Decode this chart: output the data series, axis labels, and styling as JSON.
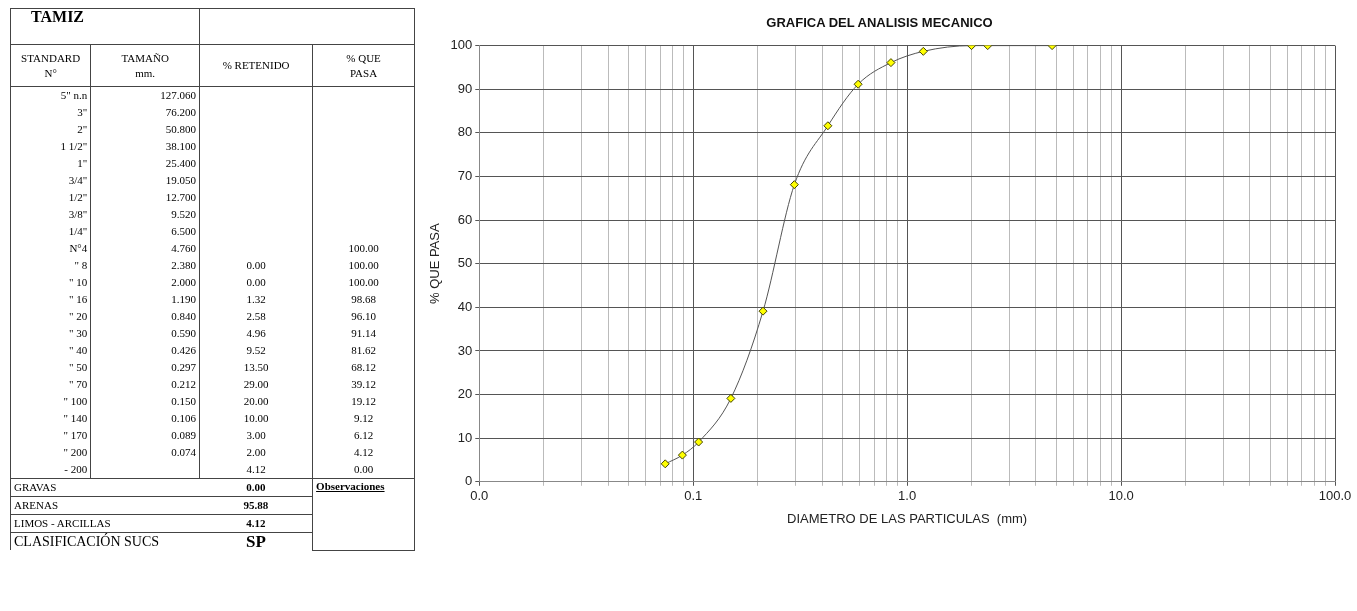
{
  "chart_data": [
    {
      "type": "other",
      "title": "TAMIZ",
      "xlabel": "STANDARD N°",
      "categories": [
        "5\" n.n",
        "3\"",
        "2\"",
        "1 1/2\"",
        "1\"",
        "3/4\"",
        "1/2\"",
        "3/8\"",
        "1/4\"",
        "N°4",
        "\" 8",
        "\" 10",
        "\" 16",
        "\" 20",
        "\" 30",
        "\" 40",
        "\" 50",
        "\" 70",
        "\" 100",
        "\" 140",
        "\" 170",
        "\" 200",
        "- 200"
      ],
      "series": [
        {
          "name": "TAMAÑO mm.",
          "values": [
            127.06,
            76.2,
            50.8,
            38.1,
            25.4,
            19.05,
            12.7,
            9.52,
            6.5,
            4.76,
            2.38,
            2.0,
            1.19,
            0.84,
            0.59,
            0.426,
            0.297,
            0.212,
            0.15,
            0.106,
            0.089,
            0.074,
            null
          ],
          "value_labels": [
            "127.060",
            "76.200",
            "50.800",
            "38.100",
            "25.400",
            "19.050",
            "12.700",
            "9.520",
            "6.500",
            "4.760",
            "2.380",
            "2.000",
            "1.190",
            "0.840",
            "0.590",
            "0.426",
            "0.297",
            "0.212",
            "0.150",
            "0.106",
            "0.089",
            "0.074",
            null
          ]
        },
        {
          "name": "% RETENIDO",
          "values": [
            null,
            null,
            null,
            null,
            null,
            null,
            null,
            null,
            null,
            null,
            0,
            0,
            1.32,
            2.58,
            4.96,
            9.52,
            13.5,
            29,
            20,
            10,
            3,
            2,
            4.12
          ],
          "value_labels": [
            null,
            null,
            null,
            null,
            null,
            null,
            null,
            null,
            null,
            null,
            "0.00",
            "0.00",
            "1.32",
            "2.58",
            "4.96",
            "9.52",
            "13.50",
            "29.00",
            "20.00",
            "10.00",
            "3.00",
            "2.00",
            "4.12"
          ]
        },
        {
          "name": "% QUE PASA",
          "values": [
            null,
            null,
            null,
            null,
            null,
            null,
            null,
            null,
            null,
            100,
            100,
            100,
            98.68,
            96.1,
            91.14,
            81.62,
            68.12,
            39.12,
            19.12,
            9.12,
            6.12,
            4.12,
            0
          ],
          "value_labels": [
            null,
            null,
            null,
            null,
            null,
            null,
            null,
            null,
            null,
            "100.00",
            "100.00",
            "100.00",
            "98.68",
            "96.10",
            "91.14",
            "81.62",
            "68.12",
            "39.12",
            "19.12",
            "9.12",
            "6.12",
            "4.12",
            "0.00"
          ]
        }
      ],
      "annotations": [
        "GRAVAS",
        "0.00",
        "ARENAS",
        "95.88",
        "LIMOS - ARCILLAS",
        "4.12",
        "CLASIFICACIÓN SUCS",
        "SP",
        "Observaciones"
      ]
    },
    {
      "type": "line",
      "title": "GRAFICA DEL ANALISIS MECANICO",
      "xlabel": "DIAMETRO DE LAS PARTICULAS  (mm)",
      "ylabel": "% QUE PASA",
      "log": "x",
      "grid": true,
      "marker": "diamond",
      "line_style": "solid",
      "xlim": [
        0.01,
        100
      ],
      "xticks": [
        {
          "value": 0.01,
          "label": "0.0"
        },
        {
          "value": 0.02,
          "label": null
        },
        {
          "value": 0.03,
          "label": null
        },
        {
          "value": 0.04,
          "label": null
        },
        {
          "value": 0.05,
          "label": null
        },
        {
          "value": 0.06,
          "label": null
        },
        {
          "value": 0.07,
          "label": null
        },
        {
          "value": 0.08,
          "label": null
        },
        {
          "value": 0.09,
          "label": null
        },
        {
          "value": 0.1,
          "label": "0.1"
        },
        {
          "value": 0.2,
          "label": null
        },
        {
          "value": 0.3,
          "label": null
        },
        {
          "value": 0.4,
          "label": null
        },
        {
          "value": 0.5,
          "label": null
        },
        {
          "value": 0.6,
          "label": null
        },
        {
          "value": 0.7,
          "label": null
        },
        {
          "value": 0.8,
          "label": null
        },
        {
          "value": 0.9,
          "label": null
        },
        {
          "value": 1,
          "label": "1.0"
        },
        {
          "value": 2,
          "label": null
        },
        {
          "value": 3,
          "label": null
        },
        {
          "value": 4,
          "label": null
        },
        {
          "value": 5,
          "label": null
        },
        {
          "value": 6,
          "label": null
        },
        {
          "value": 7,
          "label": null
        },
        {
          "value": 8,
          "label": null
        },
        {
          "value": 9,
          "label": null
        },
        {
          "value": 10,
          "label": "10.0"
        },
        {
          "value": 20,
          "label": null
        },
        {
          "value": 30,
          "label": null
        },
        {
          "value": 40,
          "label": null
        },
        {
          "value": 50,
          "label": null
        },
        {
          "value": 60,
          "label": null
        },
        {
          "value": 70,
          "label": null
        },
        {
          "value": 80,
          "label": null
        },
        {
          "value": 90,
          "label": null
        },
        {
          "value": 100,
          "label": "100.0"
        }
      ],
      "ylim": [
        0,
        100
      ],
      "yticks": [
        0,
        10,
        20,
        30,
        40,
        50,
        60,
        70,
        80,
        90,
        100
      ],
      "x": [
        4.76,
        2.38,
        2.0,
        1.19,
        0.84,
        0.59,
        0.426,
        0.297,
        0.212,
        0.15,
        0.106,
        0.089,
        0.074
      ],
      "series": [
        {
          "color": "#ffff00",
          "values": [
            100,
            100,
            100,
            98.68,
            96.1,
            91.14,
            81.62,
            68.12,
            39.12,
            19.12,
            9.12,
            6.12,
            4.12
          ]
        }
      ]
    }
  ]
}
